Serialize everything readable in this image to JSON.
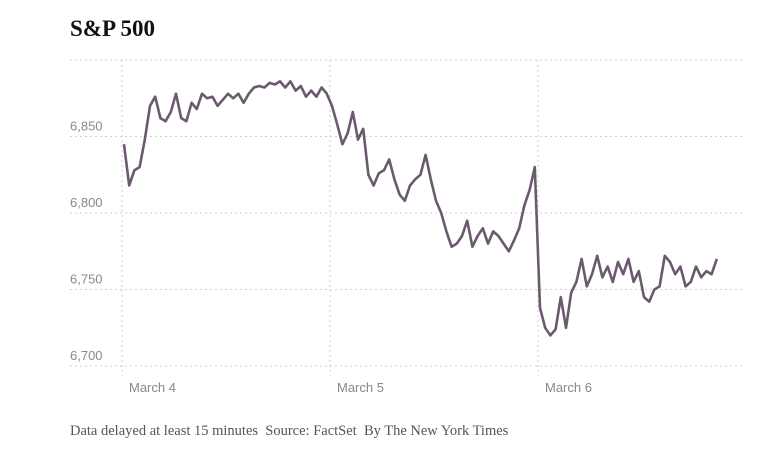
{
  "chart_data": {
    "type": "line",
    "title": "S&P 500",
    "days": [
      {
        "label": "March 4",
        "values": [
          6845,
          6818,
          6828,
          6830,
          6848,
          6870,
          6876,
          6862,
          6860,
          6866,
          6878,
          6862,
          6860,
          6872,
          6868,
          6878,
          6875,
          6876,
          6870,
          6874,
          6878,
          6875,
          6878,
          6872,
          6878,
          6882,
          6883,
          6882,
          6885,
          6884,
          6886,
          6882,
          6886,
          6880,
          6883,
          6876,
          6880,
          6876,
          6882,
          6878
        ]
      },
      {
        "label": "March 5",
        "values": [
          6870,
          6858,
          6845,
          6852,
          6866,
          6848,
          6855,
          6825,
          6818,
          6826,
          6828,
          6835,
          6822,
          6812,
          6808,
          6818,
          6822,
          6825,
          6838,
          6822,
          6808,
          6800,
          6788,
          6778,
          6780,
          6785,
          6795,
          6778,
          6785,
          6790,
          6780,
          6788,
          6785,
          6780,
          6775,
          6782,
          6790,
          6805,
          6815,
          6830
        ]
      },
      {
        "label": "March 6",
        "values": [
          6738,
          6725,
          6720,
          6724,
          6745,
          6725,
          6748,
          6755,
          6770,
          6752,
          6760,
          6772,
          6758,
          6765,
          6755,
          6768,
          6760,
          6770,
          6755,
          6762,
          6745,
          6742,
          6750,
          6752,
          6772,
          6768,
          6760,
          6765,
          6752,
          6755,
          6765,
          6758,
          6762,
          6760,
          6770
        ]
      }
    ],
    "color": "#6b5a6e",
    "ylim": [
      6700,
      6900
    ],
    "yticks": [
      {
        "value": 6700,
        "label": "6,700"
      },
      {
        "value": 6750,
        "label": "6,750"
      },
      {
        "value": 6800,
        "label": "6,800"
      },
      {
        "value": 6850,
        "label": "6,850"
      }
    ],
    "grid": true,
    "note": "Data delayed at least 15 minutes  Source: FactSet  By The New York Times"
  }
}
